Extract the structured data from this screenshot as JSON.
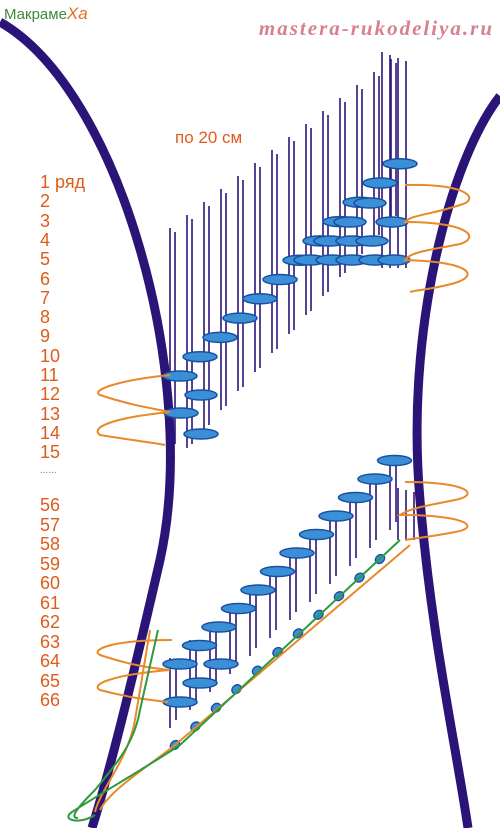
{
  "logo": {
    "main": "Макраме",
    "accent": "Ха"
  },
  "site_url": "mastera-rukodeliya.ru",
  "cord_length_label": "по 20 см",
  "row_labels_top": [
    "1 ряд",
    "2",
    "3",
    "4",
    "5",
    "6",
    "7",
    "8",
    "9",
    "10",
    "11",
    "12",
    "13",
    "14",
    "15"
  ],
  "ellipsis": "......",
  "row_labels_bottom": [
    "56",
    "57",
    "58",
    "59",
    "60",
    "61",
    "62",
    "63",
    "64",
    "65",
    "66"
  ],
  "colors": {
    "frame": "#2b1478",
    "knot_fill": "#3b8fd6",
    "knot_stroke": "#1a4fa0",
    "working_cord": "#e8892a",
    "finishing_cord": "#2e9a3e",
    "labels": "#e05a1a",
    "site_text": "#d9808e"
  }
}
